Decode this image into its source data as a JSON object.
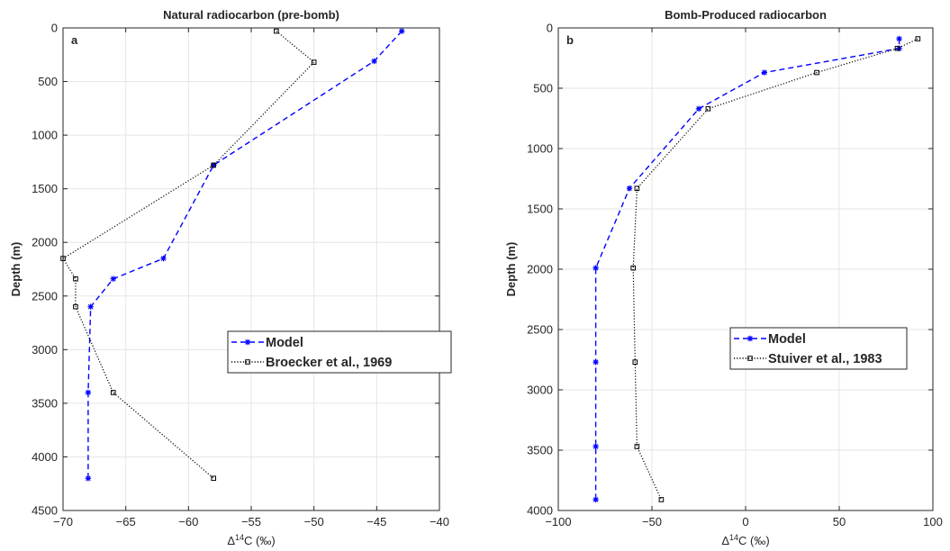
{
  "chart_data": [
    {
      "type": "line",
      "panel_letter": "a",
      "title": "Natural radiocarbon (pre-bomb)",
      "xlabel_prefix": "Δ",
      "xlabel_sup": "14",
      "xlabel_suffix": "C (‰)",
      "ylabel": "Depth (m)",
      "xlim": [
        -70,
        -40
      ],
      "ylim": [
        0,
        4500
      ],
      "y_reversed": true,
      "xticks": [
        -70,
        -65,
        -60,
        -55,
        -50,
        -45,
        -40
      ],
      "yticks": [
        0,
        500,
        1000,
        1500,
        2000,
        2500,
        3000,
        3500,
        4000,
        4500
      ],
      "grid": true,
      "legend_placement": "lower-right",
      "series": [
        {
          "name": "Model",
          "color": "#0000ff",
          "style": "dashed",
          "marker": "asterisk",
          "points": [
            [
              -43,
              30
            ],
            [
              -45.2,
              310
            ],
            [
              -58,
              1280
            ],
            [
              -62,
              2150
            ],
            [
              -66,
              2340
            ],
            [
              -67.8,
              2600
            ],
            [
              -68,
              3400
            ],
            [
              -68,
              4200
            ]
          ]
        },
        {
          "name": "Broecker et al., 1969",
          "color": "#000000",
          "style": "dotted",
          "marker": "square",
          "points": [
            [
              -53,
              30
            ],
            [
              -50,
              320
            ],
            [
              -58,
              1280
            ],
            [
              -70,
              2150
            ],
            [
              -69,
              2340
            ],
            [
              -69,
              2600
            ],
            [
              -66,
              3400
            ],
            [
              -58,
              4200
            ]
          ]
        }
      ]
    },
    {
      "type": "line",
      "panel_letter": "b",
      "title": "Bomb-Produced radiocarbon",
      "xlabel_prefix": "Δ",
      "xlabel_sup": "14",
      "xlabel_suffix": "C (‰)",
      "ylabel": "Depth (m)",
      "xlim": [
        -100,
        100
      ],
      "ylim": [
        0,
        4000
      ],
      "y_reversed": true,
      "xticks": [
        -100,
        -50,
        0,
        50,
        100
      ],
      "yticks": [
        0,
        500,
        1000,
        1500,
        2000,
        2500,
        3000,
        3500,
        4000
      ],
      "grid": true,
      "legend_placement": "lower-right",
      "series": [
        {
          "name": "Model",
          "color": "#0000ff",
          "style": "dashed",
          "marker": "asterisk",
          "points": [
            [
              82,
              90
            ],
            [
              82,
              170
            ],
            [
              10,
              370
            ],
            [
              -25,
              670
            ],
            [
              -62,
              1330
            ],
            [
              -80,
              1990
            ],
            [
              -80,
              2770
            ],
            [
              -80,
              3470
            ],
            [
              -80,
              3910
            ]
          ]
        },
        {
          "name": "Stuiver et al., 1983",
          "color": "#000000",
          "style": "dotted",
          "marker": "square",
          "points": [
            [
              92,
              90
            ],
            [
              81,
              170
            ],
            [
              38,
              370
            ],
            [
              -20,
              670
            ],
            [
              -58,
              1330
            ],
            [
              -60,
              1990
            ],
            [
              -59,
              2770
            ],
            [
              -58,
              3470
            ],
            [
              -45,
              3910
            ]
          ]
        }
      ]
    }
  ]
}
